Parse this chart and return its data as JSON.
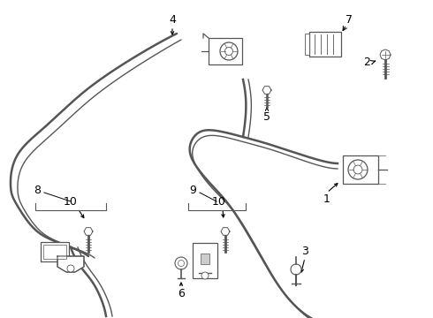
{
  "background_color": "#ffffff",
  "line_color": "#555555",
  "label_color": "#000000",
  "fig_width": 4.9,
  "fig_height": 3.6,
  "dpi": 100,
  "belt_lw": 1.8,
  "belt_lw2": 1.0,
  "comp_lw": 0.9
}
